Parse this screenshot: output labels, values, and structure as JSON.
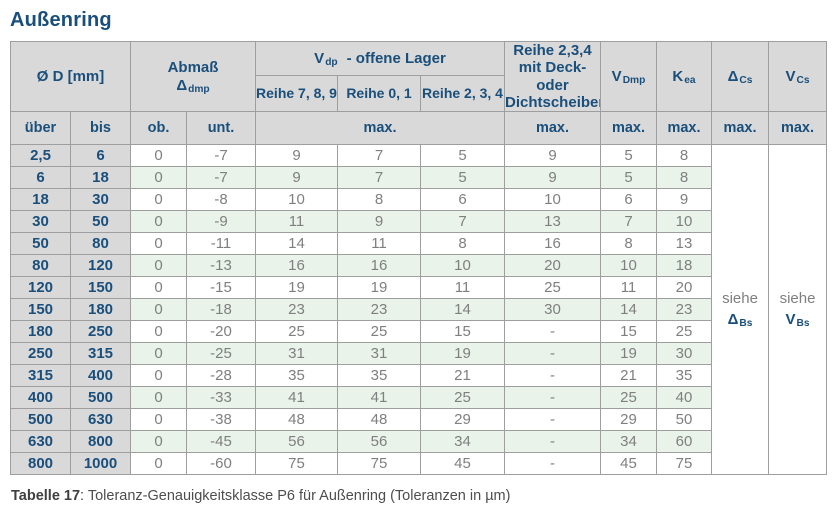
{
  "title": "Außenring",
  "caption": {
    "label": "Tabelle 17",
    "text": ": Toleranz-Genauigkeitsklasse P6 für Außenring (Toleranzen in µm)"
  },
  "colors": {
    "navy": "#1a4f7b",
    "header_bg": "#d9d9d9",
    "green_row": "#e9f3e9",
    "data_text": "#7f7f7f",
    "border": "#9e9e9e"
  },
  "table": {
    "head": {
      "od": "Ø D  [mm]",
      "abmass": {
        "line1": "Abmaß",
        "base": "Δ",
        "sub": "dmp"
      },
      "vdp_group": {
        "base": "V",
        "sub": "dp",
        "rest": "-  offene Lager"
      },
      "reihe789": "Reihe 7, 8, 9",
      "reihe01": "Reihe 0, 1",
      "reihe234": "Reihe 2, 3, 4",
      "deck": {
        "line1": "Reihe 2,3,4",
        "line2": "mit Deck- oder",
        "line3": "Dichtscheiben"
      },
      "vdmp": {
        "base": "V",
        "sub": "Dmp"
      },
      "kea": {
        "base": "K",
        "sub": "ea"
      },
      "dcs": {
        "base": "Δ",
        "sub": "Cs"
      },
      "vcs": {
        "base": "V",
        "sub": "Cs"
      },
      "ueber": "über",
      "bis": "bis",
      "ob": "ob.",
      "unt": "unt.",
      "max": "max."
    },
    "siehe_delta": {
      "word": "siehe",
      "base": "Δ",
      "sub": "Bs"
    },
    "siehe_v": {
      "word": "siehe",
      "base": "V",
      "sub": "Bs"
    },
    "rows": [
      [
        "2,5",
        "6",
        "0",
        "-7",
        "9",
        "7",
        "5",
        "9",
        "5",
        "8"
      ],
      [
        "6",
        "18",
        "0",
        "-7",
        "9",
        "7",
        "5",
        "9",
        "5",
        "8"
      ],
      [
        "18",
        "30",
        "0",
        "-8",
        "10",
        "8",
        "6",
        "10",
        "6",
        "9"
      ],
      [
        "30",
        "50",
        "0",
        "-9",
        "11",
        "9",
        "7",
        "13",
        "7",
        "10"
      ],
      [
        "50",
        "80",
        "0",
        "-11",
        "14",
        "11",
        "8",
        "16",
        "8",
        "13"
      ],
      [
        "80",
        "120",
        "0",
        "-13",
        "16",
        "16",
        "10",
        "20",
        "10",
        "18"
      ],
      [
        "120",
        "150",
        "0",
        "-15",
        "19",
        "19",
        "11",
        "25",
        "11",
        "20"
      ],
      [
        "150",
        "180",
        "0",
        "-18",
        "23",
        "23",
        "14",
        "30",
        "14",
        "23"
      ],
      [
        "180",
        "250",
        "0",
        "-20",
        "25",
        "25",
        "15",
        "-",
        "15",
        "25"
      ],
      [
        "250",
        "315",
        "0",
        "-25",
        "31",
        "31",
        "19",
        "-",
        "19",
        "30"
      ],
      [
        "315",
        "400",
        "0",
        "-28",
        "35",
        "35",
        "21",
        "-",
        "21",
        "35"
      ],
      [
        "400",
        "500",
        "0",
        "-33",
        "41",
        "41",
        "25",
        "-",
        "25",
        "40"
      ],
      [
        "500",
        "630",
        "0",
        "-38",
        "48",
        "48",
        "29",
        "-",
        "29",
        "50"
      ],
      [
        "630",
        "800",
        "0",
        "-45",
        "56",
        "56",
        "34",
        "-",
        "34",
        "60"
      ],
      [
        "800",
        "1000",
        "0",
        "-60",
        "75",
        "75",
        "45",
        "-",
        "45",
        "75"
      ]
    ]
  }
}
